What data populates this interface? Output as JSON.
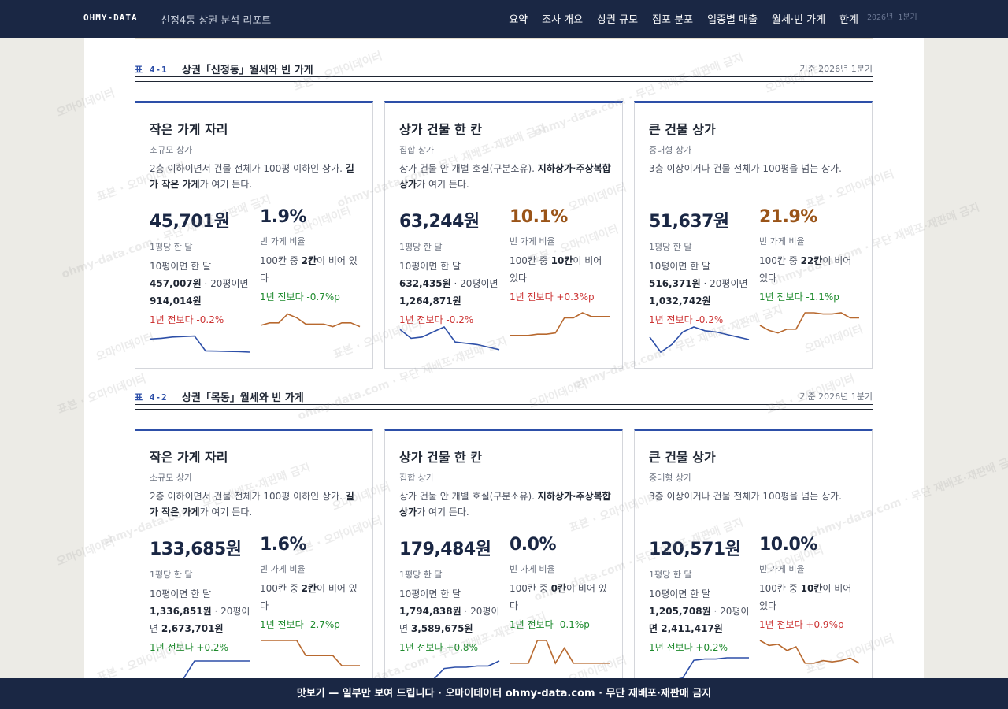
{
  "header": {
    "brand": "OHMY-DATA",
    "subtitle": "신정4동 상권 분석 리포트",
    "nav": [
      "요약",
      "조사 개요",
      "상권 규모",
      "점포 분포",
      "업종별 매출",
      "월세·빈 가게",
      "한계"
    ],
    "date": "2026년 1분기"
  },
  "sections": [
    {
      "num": "표 4-1",
      "title": "상권「신정동」월세와 빈 가게",
      "basis": "기준 2026년 1분기",
      "cards": [
        {
          "title": "작은 가게 자리",
          "sub": "소규모 상가",
          "desc_a": "2층 이하이면서 건물 전체가 100평 이하인 상가. ",
          "desc_b": "길가 작은 가게",
          "desc_c": "가 여기 든다.",
          "rent": "45,701원",
          "rent_label": "1평당 한 달",
          "rent_10_pre": "10평이면 한 달",
          "rent_10": "457,007원",
          "rent_20_pre": "· 20평이면",
          "rent_20": "914,014원",
          "rent_delta": "1년 전보다 -0.2%",
          "rent_dir": "up",
          "vac": "1.9%",
          "vac_warn": false,
          "vac_label": "빈 가게 비율",
          "vac_pre": "100칸 중 ",
          "vac_n": "2칸",
          "vac_post": "이 비어 있다",
          "vac_delta": "1년 전보다 -0.7%p",
          "vac_dir": "down",
          "rent_trend": [
            0.52,
            0.55,
            0.6,
            0.62,
            0.64,
            0.05,
            0.04,
            0.03,
            0.02,
            0.0
          ],
          "vac_trend": [
            0.5,
            0.6,
            0.6,
            0.95,
            0.8,
            0.55,
            0.55,
            0.55,
            0.45,
            0.6,
            0.6,
            0.45
          ]
        },
        {
          "title": "상가 건물 한 칸",
          "sub": "집합 상가",
          "desc_a": "상가 건물 안 개별 호실(구분소유). ",
          "desc_b": "지하상가·주상복합 상가",
          "desc_c": "가 여기 든다.",
          "rent": "63,244원",
          "rent_label": "1평당 한 달",
          "rent_10_pre": "10평이면 한 달",
          "rent_10": "632,435원",
          "rent_20_pre": "· 20평이면",
          "rent_20": "1,264,871원",
          "rent_delta": "1년 전보다 -0.2%",
          "rent_dir": "up",
          "vac": "10.1%",
          "vac_warn": true,
          "vac_label": "빈 가게 비율",
          "vac_pre": "100칸 중 ",
          "vac_n": "10칸",
          "vac_post": "이 비어 있다",
          "vac_delta": "1년 전보다 +0.3%p",
          "vac_dir": "up",
          "rent_trend": [
            0.9,
            0.55,
            0.6,
            0.8,
            1.0,
            0.4,
            0.35,
            0.3,
            0.2,
            0.1
          ],
          "vac_trend": [
            0.1,
            0.1,
            0.1,
            0.15,
            0.15,
            0.2,
            0.8,
            0.8,
            1.0,
            0.85,
            0.85,
            0.85
          ]
        },
        {
          "title": "큰 건물 상가",
          "sub": "중대형 상가",
          "desc_a": "3층 이상이거나 건물 전체가 100평을 넘는 상가.",
          "desc_b": "",
          "desc_c": "",
          "rent": "51,637원",
          "rent_label": "1평당 한 달",
          "rent_10_pre": "10평이면 한 달",
          "rent_10": "516,371원",
          "rent_20_pre": "· 20평이면",
          "rent_20": "1,032,742원",
          "rent_delta": "1년 전보다 -0.2%",
          "rent_dir": "up",
          "vac": "21.9%",
          "vac_warn": true,
          "vac_label": "빈 가게 비율",
          "vac_pre": "100칸 중 ",
          "vac_n": "22칸",
          "vac_post": "이 비어 있다",
          "vac_delta": "1년 전보다 -1.1%p",
          "vac_dir": "down",
          "rent_trend": [
            0.6,
            0.0,
            0.3,
            0.8,
            1.0,
            0.85,
            0.8,
            0.7,
            0.6,
            0.5
          ],
          "vac_trend": [
            0.5,
            0.3,
            0.2,
            0.35,
            0.35,
            1.0,
            1.0,
            0.95,
            0.95,
            1.0,
            0.8,
            0.8
          ]
        }
      ]
    },
    {
      "num": "표 4-2",
      "title": "상권「목동」월세와 빈 가게",
      "basis": "기준 2026년 1분기",
      "cards": [
        {
          "title": "작은 가게 자리",
          "sub": "소규모 상가",
          "desc_a": "2층 이하이면서 건물 전체가 100평 이하인 상가. ",
          "desc_b": "길가 작은 가게",
          "desc_c": "가 여기 든다.",
          "rent": "133,685원",
          "rent_label": "1평당 한 달",
          "rent_10_pre": "10평이면 한 달",
          "rent_10": "1,336,851원",
          "rent_20_pre": "· 20평이면",
          "rent_20": "2,673,701원",
          "rent_delta": "1년 전보다 +0.2%",
          "rent_dir": "down",
          "vac": "1.6%",
          "vac_warn": false,
          "vac_label": "빈 가게 비율",
          "vac_pre": "100칸 중 ",
          "vac_n": "2칸",
          "vac_post": "이 비어 있다",
          "vac_delta": "1년 전보다 -2.7%p",
          "vac_dir": "down",
          "rent_trend": [
            0.0,
            0.05,
            0.1,
            0.3,
            1.0,
            1.0,
            1.0,
            1.0,
            1.0,
            1.0
          ],
          "vac_trend": [
            1.0,
            1.0,
            1.0,
            1.0,
            1.0,
            0.4,
            0.4,
            0.4,
            0.4,
            0.0,
            0.0,
            0.0
          ]
        },
        {
          "title": "상가 건물 한 칸",
          "sub": "집합 상가",
          "desc_a": "상가 건물 안 개별 호실(구분소유). ",
          "desc_b": "지하상가·주상복합 상가",
          "desc_c": "가 여기 든다.",
          "rent": "179,484원",
          "rent_label": "1평당 한 달",
          "rent_10_pre": "10평이면 한 달",
          "rent_10": "1,794,838원",
          "rent_20_pre": "· 20평이면",
          "rent_20": "3,589,675원",
          "rent_delta": "1년 전보다 +0.8%",
          "rent_dir": "down",
          "vac": "0.0%",
          "vac_warn": false,
          "vac_label": "빈 가게 비율",
          "vac_pre": "100칸 중 ",
          "vac_n": "0칸",
          "vac_post": "이 비어 있다",
          "vac_delta": "1년 전보다 -0.1%p",
          "vac_dir": "down",
          "rent_trend": [
            0.0,
            0.05,
            0.1,
            0.25,
            0.7,
            0.75,
            0.75,
            0.8,
            0.8,
            1.0
          ],
          "vac_trend": [
            0.1,
            0.1,
            0.1,
            1.0,
            1.0,
            0.1,
            0.7,
            0.1,
            0.1,
            0.1,
            0.1,
            0.1
          ]
        },
        {
          "title": "큰 건물 상가",
          "sub": "중대형 상가",
          "desc_a": "3층 이상이거나 건물 전체가 100평을 넘는 상가.",
          "desc_b": "",
          "desc_c": "",
          "rent": "120,571원",
          "rent_label": "1평당 한 달",
          "rent_10_pre": "10평이면 한 달",
          "rent_10": "1,205,708원",
          "rent_20_pre": "· 20평이",
          "rent_20": "면 2,411,417원",
          "rent_delta": "1년 전보다 +0.2%",
          "rent_dir": "down",
          "vac": "10.0%",
          "vac_warn": false,
          "vac_label": "빈 가게 비율",
          "vac_pre": "100칸 중 ",
          "vac_n": "10칸",
          "vac_post": "이 비어 있다",
          "vac_delta": "1년 전보다 +0.9%p",
          "vac_dir": "up",
          "rent_trend": [
            0.0,
            0.05,
            0.1,
            0.2,
            0.9,
            0.95,
            0.95,
            1.0,
            1.0,
            1.0
          ],
          "vac_trend": [
            1.0,
            0.8,
            0.85,
            0.6,
            0.75,
            0.1,
            0.1,
            0.2,
            0.15,
            0.2,
            0.3,
            0.1
          ]
        }
      ]
    }
  ],
  "footer": "맛보기 — 일부만 보여 드립니다 · 오마이데이터 ohmy-data.com · 무단 재배포·재판매 금지",
  "watermark": [
    "오마이데이터",
    "표본 · 오마이데이터",
    "ohmy-data.com · 무단 재배포·재판매 금지"
  ],
  "colors": {
    "navy": "#1a2744",
    "accent": "#2d4fa8",
    "warn": "#9a5418",
    "up": "#cc3333",
    "down": "#1d8a2c",
    "rent_line": "#2d4fa8",
    "vac_line": "#b8692f"
  }
}
